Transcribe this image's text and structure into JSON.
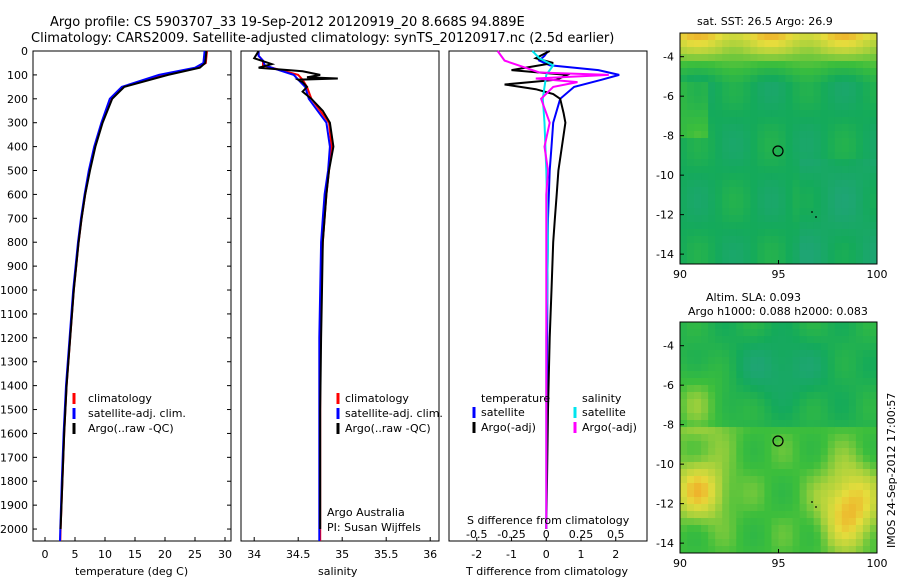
{
  "header": {
    "title_line1": "Argo profile: CS 5903707_33 19-Sep-2012 20120919_20 8.668S 94.889E",
    "title_line2": "Climatology: CARS2009. Satellite-adjusted climatology: synTS_20120917.nc (2.5d earlier)"
  },
  "colors": {
    "climatology": "#ff0000",
    "satellite": "#0000ff",
    "argo": "#000000",
    "salinity_satellite": "#00e5ee",
    "salinity_argo": "#ff00ff"
  },
  "depth_ticks": [
    "0",
    "100",
    "200",
    "300",
    "400",
    "500",
    "600",
    "700",
    "800",
    "900",
    "1000",
    "1100",
    "1200",
    "1300",
    "1400",
    "1500",
    "1600",
    "1700",
    "1800",
    "1900",
    "2000"
  ],
  "chart_data": [
    {
      "type": "line",
      "panel": "temperature",
      "xlabel": "temperature (deg C)",
      "xlim": [
        -2,
        31
      ],
      "ylim": [
        2050,
        0
      ],
      "xticks": [
        "0",
        "5",
        "10",
        "15",
        "20",
        "25",
        "30"
      ],
      "legend": [
        "climatology",
        "satellite-adj. clim.",
        "Argo(..raw -QC)"
      ],
      "series": [
        {
          "name": "climatology",
          "depth": [
            0,
            50,
            70,
            100,
            150,
            200,
            300,
            400,
            500,
            600,
            700,
            800,
            900,
            1000,
            1200,
            1400,
            1600,
            1800,
            2000,
            2050
          ],
          "values": [
            27.0,
            26.8,
            25.5,
            20.0,
            13.0,
            11.0,
            9.5,
            8.3,
            7.4,
            6.7,
            6.1,
            5.6,
            5.2,
            4.8,
            4.2,
            3.6,
            3.2,
            2.9,
            2.6,
            2.55
          ]
        },
        {
          "name": "satellite-adj. clim.",
          "depth": [
            0,
            50,
            70,
            100,
            150,
            200,
            300,
            400,
            500,
            600,
            700,
            800,
            900,
            1000,
            1200,
            1400,
            1600,
            1800,
            2000,
            2050
          ],
          "values": [
            26.6,
            26.4,
            25.0,
            19.0,
            12.8,
            10.8,
            9.4,
            8.2,
            7.3,
            6.6,
            6.0,
            5.5,
            5.1,
            4.7,
            4.1,
            3.5,
            3.1,
            2.8,
            2.55,
            2.5
          ]
        },
        {
          "name": "Argo(..raw -QC)",
          "depth": [
            0,
            50,
            70,
            100,
            150,
            200,
            300,
            400,
            500,
            600,
            700,
            800,
            900,
            1000,
            1200,
            1400,
            1600,
            1800,
            2000
          ],
          "values": [
            26.9,
            26.7,
            25.8,
            20.5,
            13.2,
            11.2,
            9.6,
            8.4,
            7.5,
            6.7,
            6.1,
            5.6,
            5.2,
            4.8,
            4.2,
            3.6,
            3.2,
            2.9,
            2.6
          ]
        }
      ]
    },
    {
      "type": "line",
      "panel": "salinity",
      "xlabel": "salinity",
      "xlim": [
        33.85,
        36.1
      ],
      "ylim": [
        2050,
        0
      ],
      "xticks": [
        "34",
        "34.5",
        "35",
        "35.5",
        "36"
      ],
      "legend": [
        "climatology",
        "satellite-adj. clim.",
        "Argo(..raw -QC)"
      ],
      "annotation": [
        "Argo Australia",
        "PI: Susan Wijffels"
      ],
      "series": [
        {
          "name": "climatology",
          "depth": [
            0,
            20,
            40,
            60,
            80,
            100,
            120,
            150,
            200,
            250,
            300,
            400,
            500,
            600,
            700,
            800,
            1000,
            1200,
            1500,
            1800,
            2050
          ],
          "values": [
            34.05,
            34.05,
            34.1,
            34.1,
            34.3,
            34.5,
            34.55,
            34.6,
            34.65,
            34.75,
            34.85,
            34.88,
            34.85,
            34.82,
            34.8,
            34.78,
            34.76,
            34.75,
            34.75,
            34.75,
            34.75
          ]
        },
        {
          "name": "satellite-adj. clim.",
          "depth": [
            0,
            20,
            40,
            60,
            80,
            100,
            120,
            150,
            200,
            250,
            300,
            400,
            500,
            600,
            700,
            800,
            1000,
            1200,
            1500,
            1800,
            2050
          ],
          "values": [
            34.05,
            34.05,
            34.1,
            34.12,
            34.28,
            34.45,
            34.5,
            34.58,
            34.62,
            34.72,
            34.82,
            34.86,
            34.84,
            34.8,
            34.78,
            34.76,
            34.75,
            34.74,
            34.74,
            34.74,
            34.74
          ]
        },
        {
          "name": "Argo(..raw -QC)",
          "depth": [
            0,
            30,
            55,
            70,
            85,
            100,
            110,
            115,
            120,
            130,
            150,
            170,
            200,
            250,
            300,
            400,
            500,
            600,
            700,
            800,
            1000,
            1200,
            1500,
            1800,
            2000
          ],
          "values": [
            34.05,
            34.0,
            34.2,
            34.05,
            34.55,
            34.75,
            34.6,
            34.95,
            34.5,
            34.55,
            34.6,
            34.55,
            34.65,
            34.78,
            34.86,
            34.9,
            34.85,
            34.82,
            34.8,
            34.78,
            34.77,
            34.76,
            34.75,
            34.75,
            34.75
          ]
        }
      ]
    },
    {
      "type": "line",
      "panel": "difference",
      "xlabel": "T difference from climatology",
      "xlabel_top": "S difference from climatology",
      "xlim": [
        -2.8,
        2.9
      ],
      "ylim": [
        2050,
        0
      ],
      "xticks": [
        "-2",
        "-1",
        "0",
        "1",
        "2"
      ],
      "xticks_s": [
        "-0.5",
        "-0.25",
        "0",
        "0.25",
        "0.5"
      ],
      "legend_headers": [
        "temperature",
        "salinity"
      ],
      "legend": [
        "satellite",
        "Argo(-adj)",
        "satellite",
        "Argo(-adj)"
      ],
      "series": [
        {
          "name": "temperature satellite",
          "depth": [
            0,
            20,
            40,
            60,
            80,
            100,
            120,
            150,
            200,
            300,
            400,
            500,
            700,
            1000,
            1500,
            2000
          ],
          "values": [
            0.05,
            -0.05,
            -0.2,
            0.1,
            1.5,
            2.1,
            1.6,
            0.8,
            0.4,
            0.2,
            0.15,
            0.1,
            0.05,
            0.03,
            0.02,
            0.0
          ]
        },
        {
          "name": "temperature Argo(-adj)",
          "depth": [
            0,
            30,
            50,
            80,
            100,
            120,
            140,
            160,
            180,
            200,
            260,
            300,
            400,
            500,
            600,
            700,
            800,
            1000,
            1200,
            1500,
            1800,
            2000
          ],
          "values": [
            0.1,
            -0.3,
            0.2,
            -1.0,
            0.6,
            0.3,
            -1.2,
            -0.3,
            0.2,
            0.4,
            0.5,
            0.55,
            0.45,
            0.35,
            0.3,
            0.25,
            0.2,
            0.15,
            0.1,
            0.05,
            0.02,
            0.0
          ]
        },
        {
          "name": "salinity satellite",
          "depth": [
            0,
            30,
            60,
            100,
            150,
            200,
            300,
            500,
            800,
            1200,
            1600,
            2000
          ],
          "values": [
            -0.4,
            -0.2,
            0.2,
            0.0,
            -0.05,
            -0.1,
            -0.05,
            0.0,
            0.05,
            0.0,
            0.0,
            0.0
          ]
        },
        {
          "name": "salinity Argo(-adj)",
          "depth": [
            0,
            40,
            70,
            90,
            100,
            115,
            130,
            150,
            200,
            300,
            400,
            500,
            600,
            800,
            1000,
            1500,
            2000
          ],
          "values": [
            -1.4,
            -1.2,
            -0.6,
            -0.2,
            1.8,
            -0.3,
            0.9,
            0.2,
            -0.15,
            0.1,
            -0.05,
            0.05,
            0.0,
            0.0,
            0.0,
            0.0,
            0.0
          ]
        }
      ]
    },
    {
      "type": "heatmap",
      "panel": "sst_map",
      "title": "sat. SST: 26.5 Argo: 26.9",
      "xlim": [
        90,
        100
      ],
      "ylim": [
        -14.5,
        -2.8
      ],
      "xticks": [
        "90",
        "95",
        "100"
      ],
      "yticks": [
        "-4",
        "-6",
        "-8",
        "-10",
        "-12",
        "-14"
      ],
      "marker": {
        "lon": 95.0,
        "lat": -8.7
      }
    },
    {
      "type": "heatmap",
      "panel": "sla_map",
      "title": "Altim. SLA: 0.093",
      "title_line2": "Argo h1000: 0.088 h2000: 0.083",
      "xlim": [
        90,
        100
      ],
      "ylim": [
        -14.5,
        -2.8
      ],
      "xticks": [
        "90",
        "95",
        "100"
      ],
      "yticks": [
        "-4",
        "-6",
        "-8",
        "-10",
        "-12",
        "-14"
      ],
      "marker": {
        "lon": 95.0,
        "lat": -8.7
      }
    }
  ],
  "footer_text": "IMOS 24-Sep-2012 17:00:57"
}
